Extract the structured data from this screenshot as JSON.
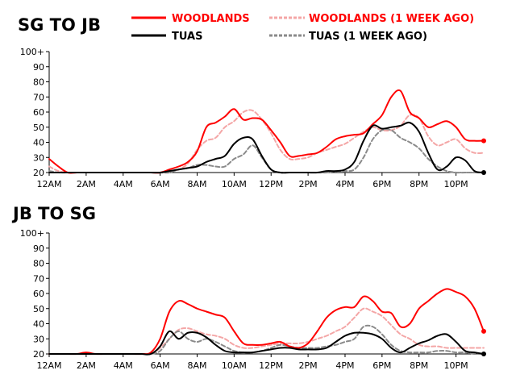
{
  "colors": {
    "woodlands": "#ff0000",
    "woodlands_week_ago": "#f4a6a6",
    "tuas": "#000000",
    "tuas_week_ago": "#8a8a8a",
    "background": "#ffffff"
  },
  "legend": {
    "woodlands": "WOODLANDS",
    "woodlands_week_ago": "WOODLANDS (1 WEEK AGO)",
    "tuas": "TUAS",
    "tuas_week_ago": "TUAS (1 WEEK AGO)",
    "placement": "top"
  },
  "chart_data": [
    {
      "type": "line",
      "title": "SG TO JB",
      "xlabel": "",
      "ylabel": "",
      "x_unit": "hour of day",
      "xlim": [
        0,
        23.5
      ],
      "ylim": [
        20,
        100
      ],
      "y_ticks": [
        "20",
        "30",
        "40",
        "50",
        "60",
        "70",
        "80",
        "90",
        "100+"
      ],
      "x_ticks": [
        "12AM",
        "2AM",
        "4AM",
        "6AM",
        "8AM",
        "10AM",
        "12PM",
        "2PM",
        "4PM",
        "6PM",
        "8PM",
        "10PM"
      ],
      "x": [
        0,
        0.5,
        1,
        1.5,
        2,
        2.5,
        3,
        3.5,
        4,
        4.5,
        5,
        5.5,
        6,
        6.5,
        7,
        7.5,
        8,
        8.5,
        9,
        9.5,
        10,
        10.5,
        11,
        11.5,
        12,
        12.5,
        13,
        13.5,
        14,
        14.5,
        15,
        15.5,
        16,
        16.5,
        17,
        17.5,
        18,
        18.5,
        19,
        19.5,
        20,
        20.5,
        21,
        21.5,
        22,
        22.5,
        23,
        23.5
      ],
      "series": [
        {
          "name": "WOODLANDS",
          "values": [
            29,
            24,
            20,
            20,
            20,
            20,
            20,
            20,
            20,
            20,
            20,
            20,
            20,
            22,
            24,
            27,
            34,
            50,
            53,
            57,
            62,
            55,
            56,
            55,
            48,
            40,
            31,
            31,
            32,
            33,
            37,
            42,
            44,
            45,
            46,
            52,
            58,
            70,
            74,
            60,
            56,
            50,
            52,
            54,
            50,
            42,
            41,
            41
          ]
        },
        {
          "name": "WOODLANDS (1 WEEK AGO)",
          "values": [
            24,
            21,
            20,
            20,
            20,
            20,
            20,
            20,
            20,
            20,
            20,
            20,
            20,
            21,
            22,
            26,
            35,
            41,
            43,
            50,
            54,
            60,
            61,
            55,
            46,
            35,
            29,
            29,
            30,
            33,
            35,
            37,
            39,
            43,
            47,
            50,
            48,
            48,
            51,
            58,
            56,
            44,
            38,
            40,
            42,
            36,
            33,
            33
          ]
        },
        {
          "name": "TUAS",
          "values": [
            20,
            20,
            20,
            20,
            20,
            20,
            20,
            20,
            20,
            20,
            20,
            20,
            20,
            21,
            22,
            23,
            24,
            27,
            29,
            31,
            39,
            43,
            42,
            31,
            22,
            20,
            20,
            20,
            20,
            20,
            21,
            21,
            22,
            27,
            41,
            51,
            49,
            50,
            51,
            53,
            47,
            33,
            22,
            24,
            30,
            28,
            21,
            20
          ]
        },
        {
          "name": "TUAS (1 WEEK AGO)",
          "values": [
            21,
            20,
            20,
            20,
            20,
            20,
            20,
            20,
            20,
            20,
            20,
            20,
            20,
            20,
            22,
            23,
            25,
            25,
            24,
            24,
            29,
            32,
            38,
            30,
            22,
            20,
            20,
            20,
            20,
            20,
            20,
            21,
            21,
            22,
            30,
            42,
            48,
            48,
            43,
            40,
            36,
            29,
            24,
            21,
            20,
            20,
            20,
            20
          ]
        }
      ]
    },
    {
      "type": "line",
      "title": "JB TO SG",
      "xlabel": "",
      "ylabel": "",
      "x_unit": "hour of day",
      "xlim": [
        0,
        23.5
      ],
      "ylim": [
        20,
        100
      ],
      "y_ticks": [
        "20",
        "30",
        "40",
        "50",
        "60",
        "70",
        "80",
        "90",
        "100+"
      ],
      "x_ticks": [
        "12AM",
        "2AM",
        "4AM",
        "6AM",
        "8AM",
        "10AM",
        "12PM",
        "2PM",
        "4PM",
        "6PM",
        "8PM",
        "10PM"
      ],
      "x": [
        0,
        0.5,
        1,
        1.5,
        2,
        2.5,
        3,
        3.5,
        4,
        4.5,
        5,
        5.5,
        6,
        6.5,
        7,
        7.5,
        8,
        8.5,
        9,
        9.5,
        10,
        10.5,
        11,
        11.5,
        12,
        12.5,
        13,
        13.5,
        14,
        14.5,
        15,
        15.5,
        16,
        16.5,
        17,
        17.5,
        18,
        18.5,
        19,
        19.5,
        20,
        20.5,
        21,
        21.5,
        22,
        22.5,
        23,
        23.5
      ],
      "series": [
        {
          "name": "WOODLANDS",
          "values": [
            20,
            20,
            20,
            20,
            21,
            20,
            20,
            20,
            20,
            20,
            20,
            21,
            30,
            48,
            55,
            53,
            50,
            48,
            46,
            44,
            35,
            27,
            26,
            26,
            27,
            28,
            25,
            24,
            27,
            35,
            44,
            49,
            51,
            51,
            58,
            55,
            48,
            47,
            38,
            40,
            50,
            55,
            60,
            63,
            61,
            58,
            50,
            35
          ]
        },
        {
          "name": "WOODLANDS (1 WEEK AGO)",
          "values": [
            20,
            20,
            20,
            20,
            20,
            20,
            20,
            20,
            20,
            20,
            20,
            20,
            24,
            30,
            36,
            37,
            35,
            33,
            32,
            30,
            26,
            24,
            24,
            25,
            26,
            27,
            27,
            27,
            28,
            30,
            32,
            35,
            38,
            44,
            50,
            48,
            45,
            39,
            33,
            30,
            26,
            25,
            25,
            24,
            24,
            24,
            24,
            24
          ]
        },
        {
          "name": "TUAS",
          "values": [
            20,
            20,
            20,
            20,
            20,
            20,
            20,
            20,
            20,
            20,
            20,
            20,
            25,
            35,
            30,
            34,
            34,
            31,
            26,
            22,
            21,
            21,
            21,
            22,
            23,
            24,
            24,
            23,
            23,
            23,
            24,
            28,
            32,
            34,
            34,
            33,
            30,
            24,
            21,
            24,
            27,
            29,
            32,
            33,
            28,
            22,
            21,
            20
          ]
        },
        {
          "name": "TUAS (1 WEEK AGO)",
          "values": [
            20,
            20,
            20,
            20,
            20,
            20,
            20,
            20,
            20,
            20,
            20,
            20,
            22,
            30,
            35,
            30,
            28,
            30,
            28,
            25,
            22,
            21,
            21,
            22,
            24,
            26,
            25,
            24,
            24,
            24,
            25,
            26,
            28,
            30,
            38,
            38,
            33,
            26,
            22,
            21,
            21,
            21,
            22,
            22,
            21,
            21,
            20,
            20
          ]
        }
      ]
    }
  ]
}
